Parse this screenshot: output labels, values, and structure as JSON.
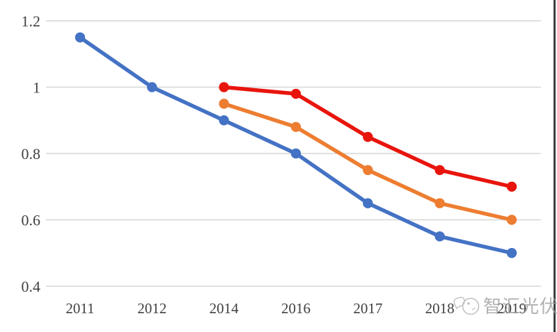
{
  "chart_data": {
    "type": "line",
    "title": "",
    "xlabel": "",
    "ylabel": "",
    "categories": [
      "2011",
      "2012",
      "2014",
      "2016",
      "2017",
      "2018",
      "2019"
    ],
    "series": [
      {
        "name": "blue",
        "color": "#4472c4",
        "values": [
          1.15,
          1.0,
          0.9,
          0.8,
          0.65,
          0.55,
          0.5
        ]
      },
      {
        "name": "orange",
        "color": "#ed7d31",
        "values": [
          null,
          null,
          0.95,
          0.88,
          0.75,
          0.65,
          0.6
        ]
      },
      {
        "name": "red",
        "color": "#e8150d",
        "values": [
          null,
          null,
          1.0,
          0.98,
          0.85,
          0.75,
          0.7
        ]
      }
    ],
    "ylim": [
      0.4,
      1.2
    ],
    "y_ticks": [
      1.2,
      1.0,
      0.8,
      0.6,
      0.4
    ],
    "y_tick_labels": [
      "1.2",
      "1",
      "0.8",
      "0.6",
      "0.4"
    ],
    "grid": true,
    "legend": false
  },
  "watermark": {
    "text": "智汇光伏",
    "icon": "doodle-face-icon"
  },
  "colors": {
    "background": "#ffffff",
    "gridline": "#d6d6d6",
    "axis_text": "#3f3f3f",
    "watermark_text": "#9e9e9e",
    "right_border": "#3c3c3c"
  }
}
